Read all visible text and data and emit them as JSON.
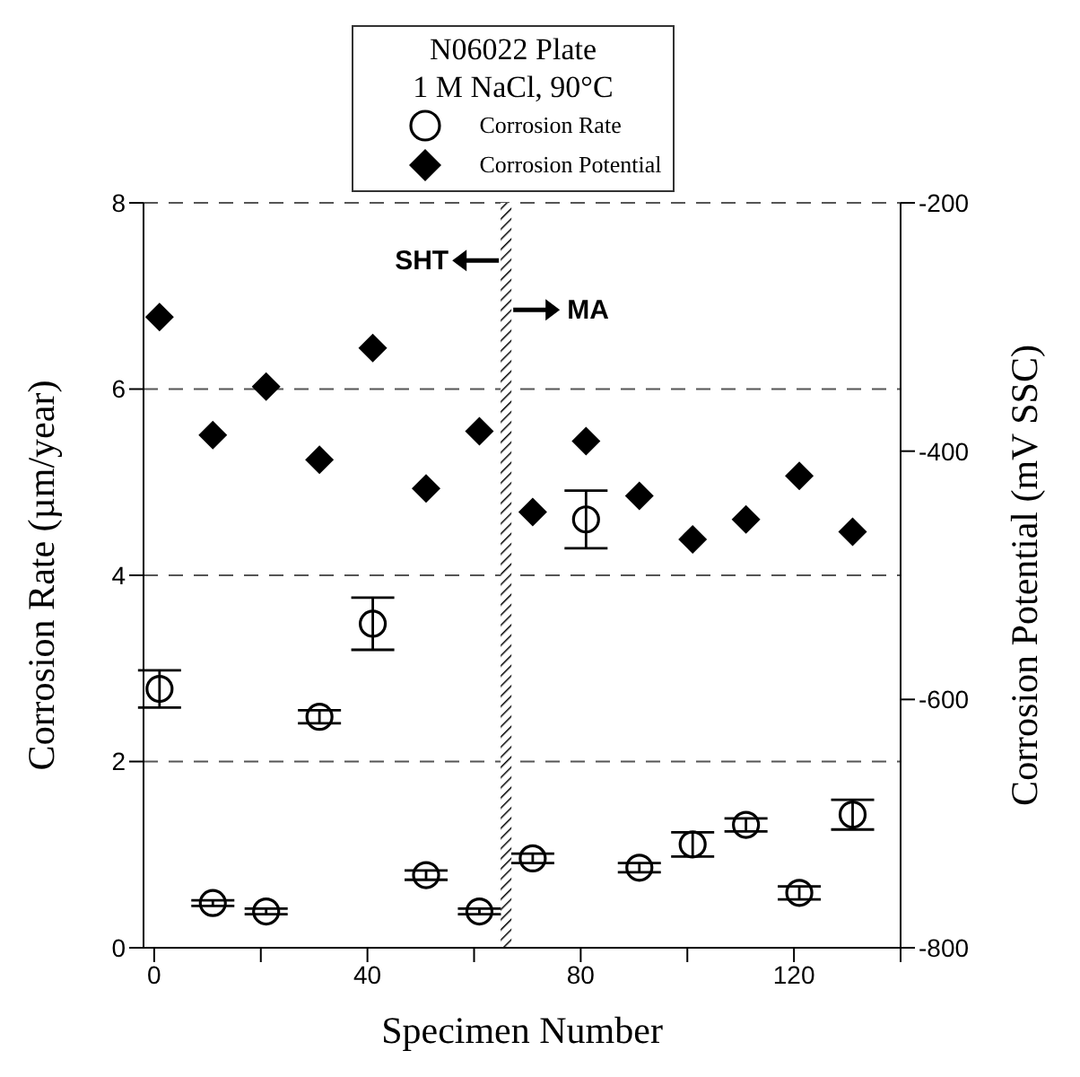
{
  "chart_data": {
    "type": "scatter",
    "xlabel": "Specimen Number",
    "ylabel": "Corrosion Rate (µm/year)",
    "y2label": "Corrosion Potential (mV SSC)",
    "legend_title": "N06022 Plate\n1 M NaCl, 90°C",
    "legend": "top",
    "grid": "y",
    "xlim": [
      -2,
      140
    ],
    "xticks": [
      0,
      {
        "value": 20,
        "label": null
      },
      40,
      {
        "value": 60,
        "label": null
      },
      80,
      {
        "value": 100,
        "label": null
      },
      120,
      {
        "value": 140,
        "label": null
      }
    ],
    "ylim": [
      0,
      8
    ],
    "yticks": [
      0,
      2,
      4,
      6,
      8
    ],
    "y2lim": [
      -800,
      -200
    ],
    "y2ticks": [
      -800,
      -600,
      -400,
      -200
    ],
    "ref_lines": [
      {
        "axis": "x",
        "value": 66,
        "color": "#000000"
      }
    ],
    "annotations": [
      "SHT",
      "MA"
    ],
    "series": [
      {
        "name": "Corrosion Rate",
        "color": "#000000",
        "marker": "circle",
        "x": [
          1,
          11,
          21,
          31,
          41,
          51,
          61,
          71,
          81,
          91,
          101,
          111,
          121,
          131
        ],
        "values": [
          2.78,
          0.48,
          0.39,
          2.48,
          3.48,
          0.78,
          0.39,
          0.96,
          4.6,
          0.86,
          1.11,
          1.32,
          0.59,
          1.43
        ],
        "errors": [
          0.2,
          0.03,
          0.03,
          0.07,
          0.28,
          0.05,
          0.03,
          0.05,
          0.31,
          0.05,
          0.13,
          0.07,
          0.07,
          0.16
        ]
      },
      {
        "name": "Corrosion Potential",
        "color": "#000000",
        "marker": "diamond",
        "axis": "y2",
        "x": [
          1,
          11,
          21,
          31,
          41,
          51,
          61,
          71,
          81,
          91,
          101,
          111,
          121,
          131
        ],
        "values": [
          -292,
          -387,
          -348,
          -407,
          -317,
          -430,
          -384,
          -449,
          -392,
          -436,
          -471,
          -455,
          -420,
          -465
        ]
      }
    ]
  }
}
